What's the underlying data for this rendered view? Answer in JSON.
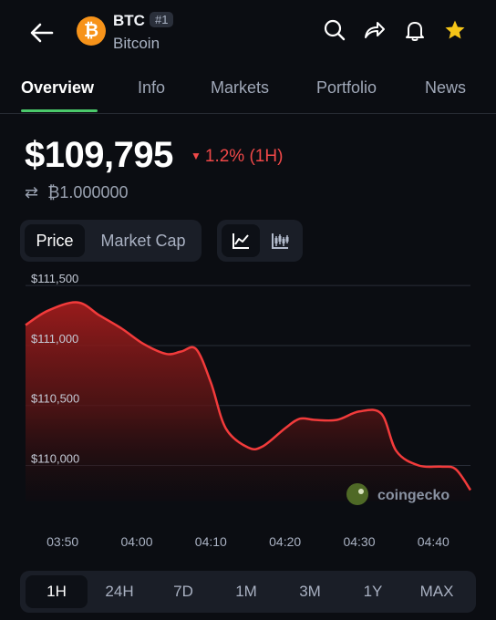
{
  "header": {
    "symbol": "BTC",
    "rank": "#1",
    "name": "Bitcoin",
    "logo_glyph": "₿",
    "icons": [
      "back-arrow-icon",
      "search-icon",
      "share-icon",
      "bell-icon",
      "star-icon"
    ]
  },
  "tabs": [
    {
      "label": "Overview",
      "active": true
    },
    {
      "label": "Info"
    },
    {
      "label": "Markets"
    },
    {
      "label": "Portfolio"
    },
    {
      "label": "News"
    }
  ],
  "price": {
    "value": "$109,795",
    "change": "1.2% (1H)",
    "change_direction": "down",
    "btc_value": "₿1.000000"
  },
  "toggles": {
    "metric": [
      "Price",
      "Market Cap"
    ],
    "metric_selected": "Price",
    "chart_types": [
      "line-chart-icon",
      "candlestick-icon"
    ],
    "chart_type_selected": "line"
  },
  "chart_data": {
    "type": "area",
    "x": [
      "03:45",
      "03:48",
      "03:52",
      "03:55",
      "03:58",
      "04:01",
      "04:04",
      "04:06",
      "04:08",
      "04:10",
      "04:12",
      "04:15",
      "04:17",
      "04:20",
      "04:22",
      "04:24",
      "04:27",
      "04:30",
      "04:33",
      "04:35",
      "04:38",
      "04:41",
      "04:43",
      "04:45"
    ],
    "values": [
      111170,
      111290,
      111360,
      111250,
      111140,
      111010,
      110930,
      110950,
      110970,
      110690,
      110310,
      110150,
      110160,
      110310,
      110390,
      110380,
      110380,
      110450,
      110430,
      110120,
      110000,
      109990,
      109970,
      109795
    ],
    "xtick_labels": [
      "03:50",
      "04:00",
      "04:10",
      "04:20",
      "04:30",
      "04:40"
    ],
    "ytick_labels": [
      "$110,000",
      "$110,500",
      "$111,000",
      "$111,500"
    ],
    "ytick_values": [
      110000,
      110500,
      111000,
      111500
    ],
    "ylim": [
      109700,
      111600
    ],
    "grid": true,
    "line_color": "#f23b3b",
    "fill_color": "#7a1d1d",
    "watermark": "coingecko"
  },
  "ranges": {
    "options": [
      "1H",
      "24H",
      "7D",
      "1M",
      "3M",
      "1Y",
      "MAX"
    ],
    "selected": "1H"
  }
}
